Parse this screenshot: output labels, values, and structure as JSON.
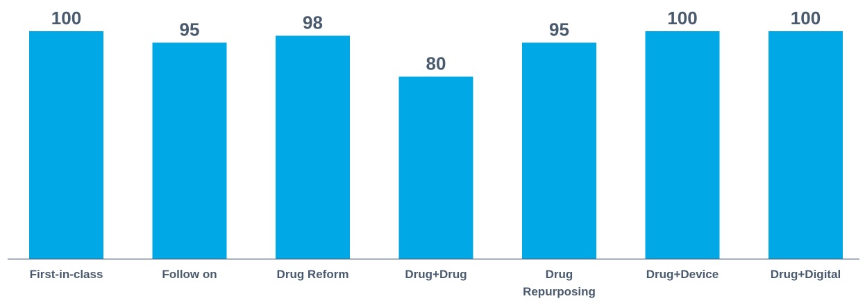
{
  "chart_data": {
    "type": "bar",
    "categories": [
      [
        "First-in-class"
      ],
      [
        "Follow on"
      ],
      [
        "Drug Reform"
      ],
      [
        "Drug+Drug"
      ],
      [
        "Drug",
        "Repurposing"
      ],
      [
        "Drug+Device"
      ],
      [
        "Drug+Digital"
      ]
    ],
    "values": [
      100,
      95,
      98,
      80,
      95,
      100,
      100
    ],
    "ylim": [
      0,
      100
    ],
    "grid": false,
    "legend": "none",
    "colors": {
      "bar": "#00a9e6",
      "value_label": "#4a5a6e",
      "category_label": "#4a5a6e",
      "axis": "#4a5a6e"
    }
  }
}
